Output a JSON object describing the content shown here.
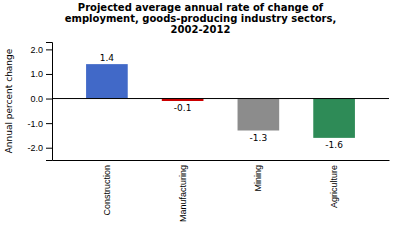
{
  "chart_data": {
    "type": "bar",
    "title": "Projected average annual rate of change of\nemployment, goods-producing industry sectors,\n2002-2012",
    "ylabel": "Annual percent change",
    "categories": [
      "Construction",
      "Manufacturing",
      "Mining",
      "Agriculture"
    ],
    "values": [
      1.4,
      -0.1,
      -1.3,
      -1.6
    ],
    "colors": [
      "#4169c8",
      "#cc0000",
      "#8c8c8c",
      "#2e8b57"
    ],
    "ylim": [
      -2.5,
      2.3
    ],
    "yticks": [
      {
        "value": -2.0,
        "label": "-2.0"
      },
      {
        "value": -1.0,
        "label": "-1.0"
      },
      {
        "value": 0.0,
        "label": "0.0"
      },
      {
        "value": 1.0,
        "label": "1.0"
      },
      {
        "value": 2.0,
        "label": "2.0"
      }
    ],
    "data_labels": true,
    "grid": false
  }
}
